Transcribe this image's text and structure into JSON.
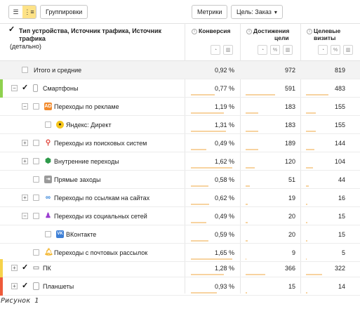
{
  "toolbar": {
    "group_label": "Группировки",
    "metrics_label": "Метрики",
    "goal_label": "Цель: Заказ"
  },
  "header": {
    "dim_title_line1": "Тип устройства, Источник трафика, Источник трафика",
    "dim_title_line2": "(детально)",
    "col1": "Конверсия",
    "col2_line1": "Достижения",
    "col2_line2": "цели",
    "col3_line1": "Целевые",
    "col3_line2": "визиты"
  },
  "rows": [
    {
      "label": "Итого и средние",
      "conv": "0,92 %",
      "goals": "972",
      "visits": "819",
      "bar": [
        0,
        0,
        0
      ]
    },
    {
      "label": "Смартфоны",
      "conv": "0,77 %",
      "goals": "591",
      "visits": "483",
      "bar": [
        0.55,
        0.6,
        0.6
      ]
    },
    {
      "label": "Переходы по рекламе",
      "conv": "1,19 %",
      "goals": "183",
      "visits": "155",
      "bar": [
        0.75,
        0.25,
        0.25
      ]
    },
    {
      "label": "Яндекс: Директ",
      "conv": "1,31 %",
      "goals": "183",
      "visits": "155",
      "bar": [
        0.8,
        0.25,
        0.25
      ]
    },
    {
      "label": "Переходы из поисковых систем",
      "conv": "0,49 %",
      "goals": "189",
      "visits": "144",
      "bar": [
        0.35,
        0.25,
        0.22
      ]
    },
    {
      "label": "Внутренние переходы",
      "conv": "1,62 %",
      "goals": "120",
      "visits": "104",
      "bar": [
        0.95,
        0.18,
        0.18
      ]
    },
    {
      "label": "Прямые заходы",
      "conv": "0,58 %",
      "goals": "51",
      "visits": "44",
      "bar": [
        0.4,
        0.08,
        0.08
      ]
    },
    {
      "label": "Переходы по ссылкам на сайтах",
      "conv": "0,62 %",
      "goals": "19",
      "visits": "16",
      "bar": [
        0.42,
        0.04,
        0.04
      ]
    },
    {
      "label": "Переходы из социальных сетей",
      "conv": "0,49 %",
      "goals": "20",
      "visits": "15",
      "bar": [
        0.35,
        0.04,
        0.04
      ]
    },
    {
      "label": "ВКонтакте",
      "conv": "0,59 %",
      "goals": "20",
      "visits": "15",
      "bar": [
        0.4,
        0.04,
        0.04
      ]
    },
    {
      "label": "Переходы с почтовых рассылок",
      "conv": "1,65 %",
      "goals": "9",
      "visits": "5",
      "bar": [
        0.95,
        0.02,
        0.02
      ]
    },
    {
      "label": "ПК",
      "conv": "1,28 %",
      "goals": "366",
      "visits": "322",
      "bar": [
        0.75,
        0.4,
        0.42
      ]
    },
    {
      "label": "Планшеты",
      "conv": "0,93 %",
      "goals": "15",
      "visits": "14",
      "bar": [
        0.6,
        0.03,
        0.03
      ]
    }
  ],
  "caption": "Рисунок 1"
}
